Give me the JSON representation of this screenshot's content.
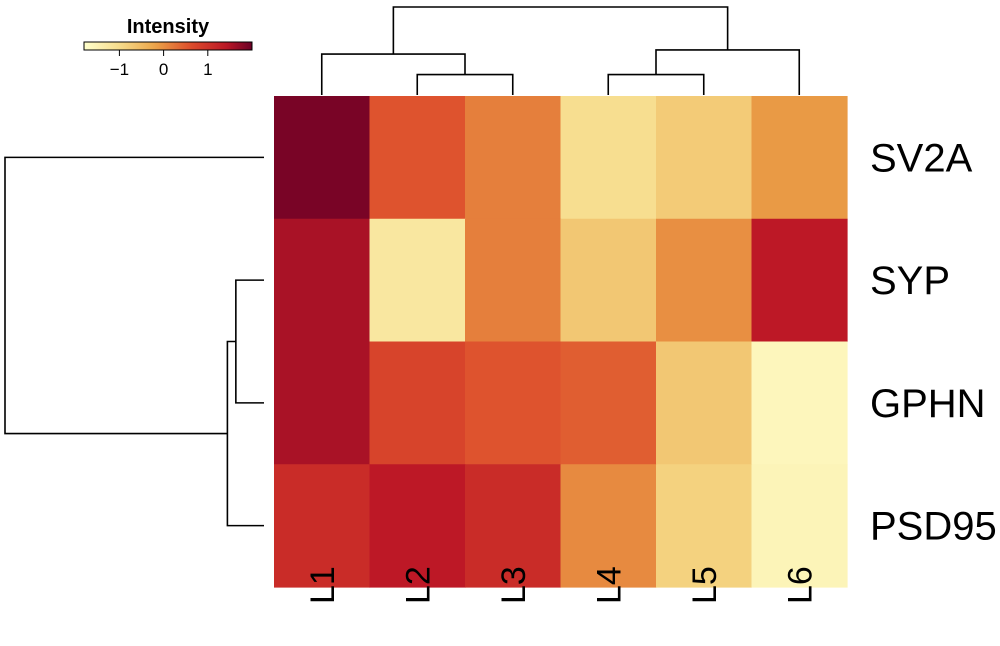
{
  "chart_data": {
    "type": "heatmap",
    "rows": [
      "SV2A",
      "SYP",
      "GPHN",
      "PSD95"
    ],
    "columns": [
      "L1",
      "L2",
      "L3",
      "L4",
      "L5",
      "L6"
    ],
    "values": [
      [
        1.9,
        0.55,
        0.15,
        -1.05,
        -0.75,
        -0.1
      ],
      [
        1.55,
        -1.25,
        0.15,
        -0.7,
        0.0,
        1.4
      ],
      [
        1.55,
        0.75,
        0.55,
        0.45,
        -0.7,
        -1.6
      ],
      [
        1.1,
        1.4,
        1.1,
        0.05,
        -0.85,
        -1.55
      ]
    ],
    "color_scale": {
      "title": "Intensity",
      "range": [
        -1.8,
        2.0
      ],
      "ticks": [
        -1,
        0,
        1
      ],
      "tick_labels": [
        "−1",
        "0",
        "1"
      ],
      "stops": [
        {
          "value": -1.8,
          "color": "#ffffcc"
        },
        {
          "value": -1.0,
          "color": "#f6dc8c"
        },
        {
          "value": -0.2,
          "color": "#eba549"
        },
        {
          "value": 0.6,
          "color": "#dd4e2c"
        },
        {
          "value": 1.4,
          "color": "#bd1826"
        },
        {
          "value": 2.0,
          "color": "#6b0026"
        }
      ]
    },
    "column_dendrogram": {
      "order": [
        "L1",
        "L2",
        "L3",
        "L4",
        "L5",
        "L6"
      ],
      "merges": [
        {
          "a": "L2",
          "b": "L3",
          "height": 1.0
        },
        {
          "a": "L4",
          "b": "L5",
          "height": 1.0
        },
        {
          "a": "L1",
          "b": "L2+L3",
          "height": 2.0
        },
        {
          "a": "L4+L5",
          "b": "L6",
          "height": 2.2
        },
        {
          "a": "L1+L2+L3",
          "b": "L4+L5+L6",
          "height": 4.3
        }
      ]
    },
    "row_dendrogram": {
      "order": [
        "SV2A",
        "SYP",
        "GPHN",
        "PSD95"
      ],
      "merges": [
        {
          "a": "SYP",
          "b": "GPHN",
          "height": 1.0
        },
        {
          "a": "SYP+GPHN",
          "b": "PSD95",
          "height": 1.3
        },
        {
          "a": "SV2A",
          "b": "SYP+GPHN+PSD95",
          "height": 9.2
        }
      ]
    },
    "legend_placement": "top-left"
  }
}
